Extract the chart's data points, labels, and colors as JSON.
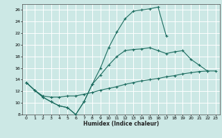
{
  "xlabel": "Humidex (Indice chaleur)",
  "bg_color": "#cce8e5",
  "grid_color": "#ffffff",
  "line_color": "#1a6b5e",
  "xlim": [
    -0.5,
    23.5
  ],
  "ylim": [
    8,
    27
  ],
  "xticks": [
    0,
    1,
    2,
    3,
    4,
    5,
    6,
    7,
    8,
    9,
    10,
    11,
    12,
    13,
    14,
    15,
    16,
    17,
    18,
    19,
    20,
    21,
    22,
    23
  ],
  "yticks": [
    8,
    10,
    12,
    14,
    16,
    18,
    20,
    22,
    24,
    26
  ],
  "line1_x": [
    0,
    1,
    2,
    3,
    4,
    5,
    6,
    7,
    8,
    9,
    10,
    11,
    12,
    13,
    14,
    15,
    16,
    17
  ],
  "line1_y": [
    13.5,
    12.2,
    11.0,
    10.2,
    9.5,
    9.2,
    8.0,
    10.2,
    13.2,
    16.0,
    19.5,
    22.2,
    24.5,
    25.8,
    26.0,
    26.2,
    26.5,
    21.5
  ],
  "line2_x": [
    0,
    1,
    2,
    3,
    4,
    5,
    6,
    7,
    8,
    9,
    10,
    11,
    12,
    13,
    14,
    15,
    16,
    17,
    18,
    19,
    20,
    21,
    22
  ],
  "line2_y": [
    13.5,
    12.2,
    11.0,
    10.2,
    9.5,
    9.2,
    8.0,
    10.2,
    13.2,
    14.8,
    16.5,
    18.0,
    19.0,
    19.2,
    19.3,
    19.5,
    19.0,
    18.5,
    18.8,
    19.0,
    17.5,
    16.5,
    15.5
  ],
  "line3_x": [
    0,
    1,
    2,
    3,
    4,
    5,
    6,
    7,
    8,
    9,
    10,
    11,
    12,
    13,
    14,
    15,
    16,
    17,
    18,
    19,
    20,
    21,
    22,
    23
  ],
  "line3_y": [
    13.5,
    12.2,
    11.2,
    11.0,
    11.0,
    11.2,
    11.2,
    11.5,
    11.8,
    12.2,
    12.5,
    12.8,
    13.2,
    13.5,
    13.8,
    14.0,
    14.2,
    14.5,
    14.7,
    15.0,
    15.2,
    15.4,
    15.5,
    15.5
  ]
}
